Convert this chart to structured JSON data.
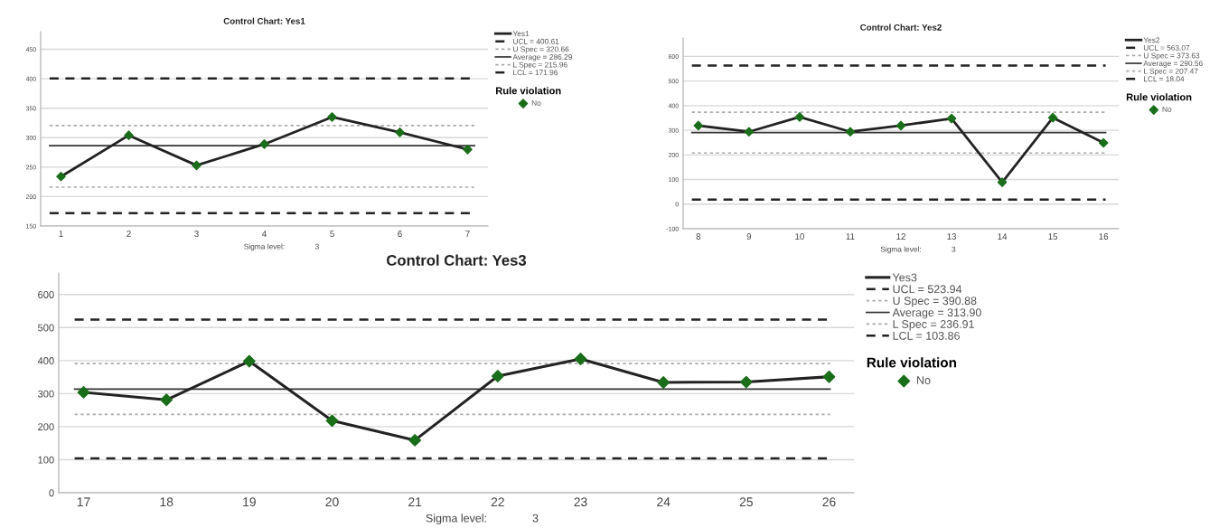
{
  "chart_data": [
    {
      "type": "line",
      "title": "Control Chart: Yes1",
      "xlabel": "Sigma level:",
      "annotations": [
        "3"
      ],
      "legend_title": "Rule violation",
      "categories": [
        "1",
        "2",
        "3",
        "4",
        "5",
        "6",
        "7"
      ],
      "series": [
        {
          "name": "Yes1",
          "color": "#222222",
          "marker": "none",
          "values": [
            234,
            304,
            253,
            289,
            335,
            309,
            280
          ]
        },
        {
          "name": "No",
          "type": "scatter",
          "color": "#1a6e1a",
          "marker": "diamond",
          "values": [
            234,
            304,
            253,
            289,
            335,
            309,
            280
          ]
        }
      ],
      "ref_lines": [
        {
          "axis": "y",
          "value": 400.61,
          "label": "UCL = 400.61",
          "color": "#222222",
          "line_style": "dashed"
        },
        {
          "axis": "y",
          "value": 320.66,
          "label": "U Spec = 320.66",
          "color": "#aaaaaa",
          "line_style": "dotted"
        },
        {
          "axis": "y",
          "value": 286.29,
          "label": "Average = 286.29",
          "color": "#333333",
          "line_style": "solid"
        },
        {
          "axis": "y",
          "value": 215.96,
          "label": "L Spec = 215.96",
          "color": "#aaaaaa",
          "line_style": "dotted"
        },
        {
          "axis": "y",
          "value": 171.96,
          "label": "LCL = 171.96",
          "color": "#222222",
          "line_style": "dashed"
        }
      ],
      "ylim": [
        150,
        480
      ],
      "yticks": [
        150,
        200,
        250,
        300,
        350,
        400,
        450
      ],
      "grid": "y",
      "legend": "right"
    },
    {
      "type": "line",
      "title": "Control Chart: Yes2",
      "xlabel": "Sigma level:",
      "annotations": [
        "3"
      ],
      "legend_title": "Rule violation",
      "categories": [
        "8",
        "9",
        "10",
        "11",
        "12",
        "13",
        "14",
        "15",
        "16"
      ],
      "series": [
        {
          "name": "Yes2",
          "color": "#222222",
          "marker": "none",
          "values": [
            319,
            294,
            354,
            294,
            319,
            348,
            89,
            351,
            249
          ]
        },
        {
          "name": "No",
          "type": "scatter",
          "color": "#1a6e1a",
          "marker": "diamond",
          "values": [
            319,
            294,
            354,
            294,
            319,
            348,
            89,
            351,
            249
          ]
        }
      ],
      "ref_lines": [
        {
          "axis": "y",
          "value": 563.07,
          "label": "UCL = 563.07",
          "color": "#222222",
          "line_style": "dashed"
        },
        {
          "axis": "y",
          "value": 373.63,
          "label": "U Spec = 373.63",
          "color": "#aaaaaa",
          "line_style": "dotted"
        },
        {
          "axis": "y",
          "value": 290.56,
          "label": "Average = 290.56",
          "color": "#333333",
          "line_style": "solid"
        },
        {
          "axis": "y",
          "value": 207.47,
          "label": "L Spec = 207.47",
          "color": "#aaaaaa",
          "line_style": "dotted"
        },
        {
          "axis": "y",
          "value": 18.04,
          "label": "LCL = 18.04",
          "color": "#222222",
          "line_style": "dashed"
        }
      ],
      "ylim": [
        -100,
        675
      ],
      "yticks": [
        -100,
        0,
        100,
        200,
        300,
        400,
        500,
        600
      ],
      "grid": "y",
      "legend": "right"
    },
    {
      "type": "line",
      "title": "Control Chart: Yes3",
      "xlabel": "Sigma level:",
      "annotations": [
        "3"
      ],
      "legend_title": "Rule violation",
      "categories": [
        "17",
        "18",
        "19",
        "20",
        "21",
        "22",
        "23",
        "24",
        "25",
        "26"
      ],
      "series": [
        {
          "name": "Yes3",
          "color": "#222222",
          "marker": "none",
          "values": [
            304,
            281,
            398,
            218,
            159,
            353,
            405,
            334,
            335,
            351
          ]
        },
        {
          "name": "No",
          "type": "scatter",
          "color": "#1a6e1a",
          "marker": "diamond",
          "values": [
            304,
            281,
            398,
            218,
            159,
            353,
            405,
            334,
            335,
            351
          ]
        }
      ],
      "ref_lines": [
        {
          "axis": "y",
          "value": 523.94,
          "label": "UCL = 523.94",
          "color": "#222222",
          "line_style": "dashed"
        },
        {
          "axis": "y",
          "value": 390.88,
          "label": "U Spec = 390.88",
          "color": "#aaaaaa",
          "line_style": "dotted"
        },
        {
          "axis": "y",
          "value": 313.9,
          "label": "Average = 313.90",
          "color": "#333333",
          "line_style": "solid"
        },
        {
          "axis": "y",
          "value": 236.91,
          "label": "L Spec = 236.91",
          "color": "#aaaaaa",
          "line_style": "dotted"
        },
        {
          "axis": "y",
          "value": 103.86,
          "label": "LCL = 103.86",
          "color": "#222222",
          "line_style": "dashed"
        }
      ],
      "ylim": [
        0,
        665
      ],
      "yticks": [
        0,
        100,
        200,
        300,
        400,
        500,
        600
      ],
      "grid": "y",
      "legend": "right"
    }
  ]
}
